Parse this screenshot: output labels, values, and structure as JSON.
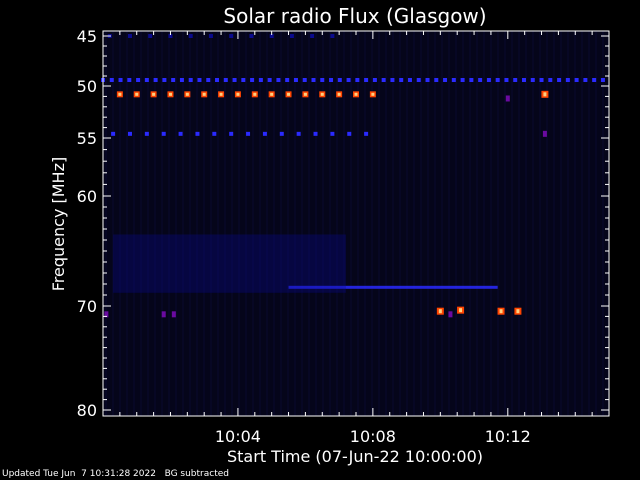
{
  "chart_data": {
    "type": "heatmap",
    "title": "Solar radio Flux (Glasgow)",
    "xlabel": "Start Time (07-Jun-22 10:00:00)",
    "ylabel": "Frequency [MHz]",
    "xlim_min": [
      0,
      15
    ],
    "ylim_mhz": [
      45,
      80
    ],
    "y_inverted": true,
    "x_ticks": [
      {
        "min": 4,
        "label": "10:04"
      },
      {
        "min": 8,
        "label": "10:08"
      },
      {
        "min": 12,
        "label": "10:12"
      }
    ],
    "y_ticks": [
      {
        "mhz": 45,
        "label": "45"
      },
      {
        "mhz": 50,
        "label": "50"
      },
      {
        "mhz": 55,
        "label": "55"
      },
      {
        "mhz": 60,
        "label": "60"
      },
      {
        "mhz": 70,
        "label": "70"
      },
      {
        "mhz": 80,
        "label": "80"
      }
    ],
    "colors": {
      "background": "#05051a",
      "low": "#0a0a8c",
      "mid": "#2a2aff",
      "high_outer": "#ff4400",
      "high_inner": "#ffd080"
    },
    "features": [
      {
        "kind": "dashed-band",
        "mhz": 49.4,
        "x_from": 0,
        "x_to": 15,
        "step": 0.26,
        "level": "mid"
      },
      {
        "kind": "dashed-band",
        "mhz": 50.8,
        "x_from": 0.5,
        "x_to": 8.1,
        "step": 0.5,
        "level": "high"
      },
      {
        "kind": "dashed-band",
        "mhz": 54.6,
        "x_from": 0.3,
        "x_to": 8.1,
        "step": 0.5,
        "level": "mid"
      },
      {
        "kind": "dashed-band",
        "mhz": 45.0,
        "x_from": 0.2,
        "x_to": 7.0,
        "step": 0.6,
        "level": "low"
      },
      {
        "kind": "continuous-band",
        "mhz": 68.3,
        "x_from": 5.5,
        "x_to": 11.7,
        "level": "mid"
      },
      {
        "kind": "faint-region",
        "mhz_from": 63.5,
        "mhz_to": 68.8,
        "x_from": 0.3,
        "x_to": 7.2,
        "level": "low"
      }
    ],
    "bursts": [
      {
        "min": 13.1,
        "mhz": 50.8
      },
      {
        "min": 10.0,
        "mhz": 70.5
      },
      {
        "min": 10.6,
        "mhz": 70.4
      },
      {
        "min": 11.8,
        "mhz": 70.5
      },
      {
        "min": 12.3,
        "mhz": 70.5
      }
    ],
    "spots": [
      {
        "min": 0.1,
        "mhz": 70.8
      },
      {
        "min": 1.8,
        "mhz": 70.8
      },
      {
        "min": 2.1,
        "mhz": 70.8
      },
      {
        "min": 10.3,
        "mhz": 70.8
      },
      {
        "min": 12.0,
        "mhz": 51.2
      },
      {
        "min": 13.1,
        "mhz": 54.6
      }
    ]
  },
  "footer": {
    "updated": "Updated Tue Jun  7 10:31:28 2022",
    "note": "BG subtracted"
  }
}
